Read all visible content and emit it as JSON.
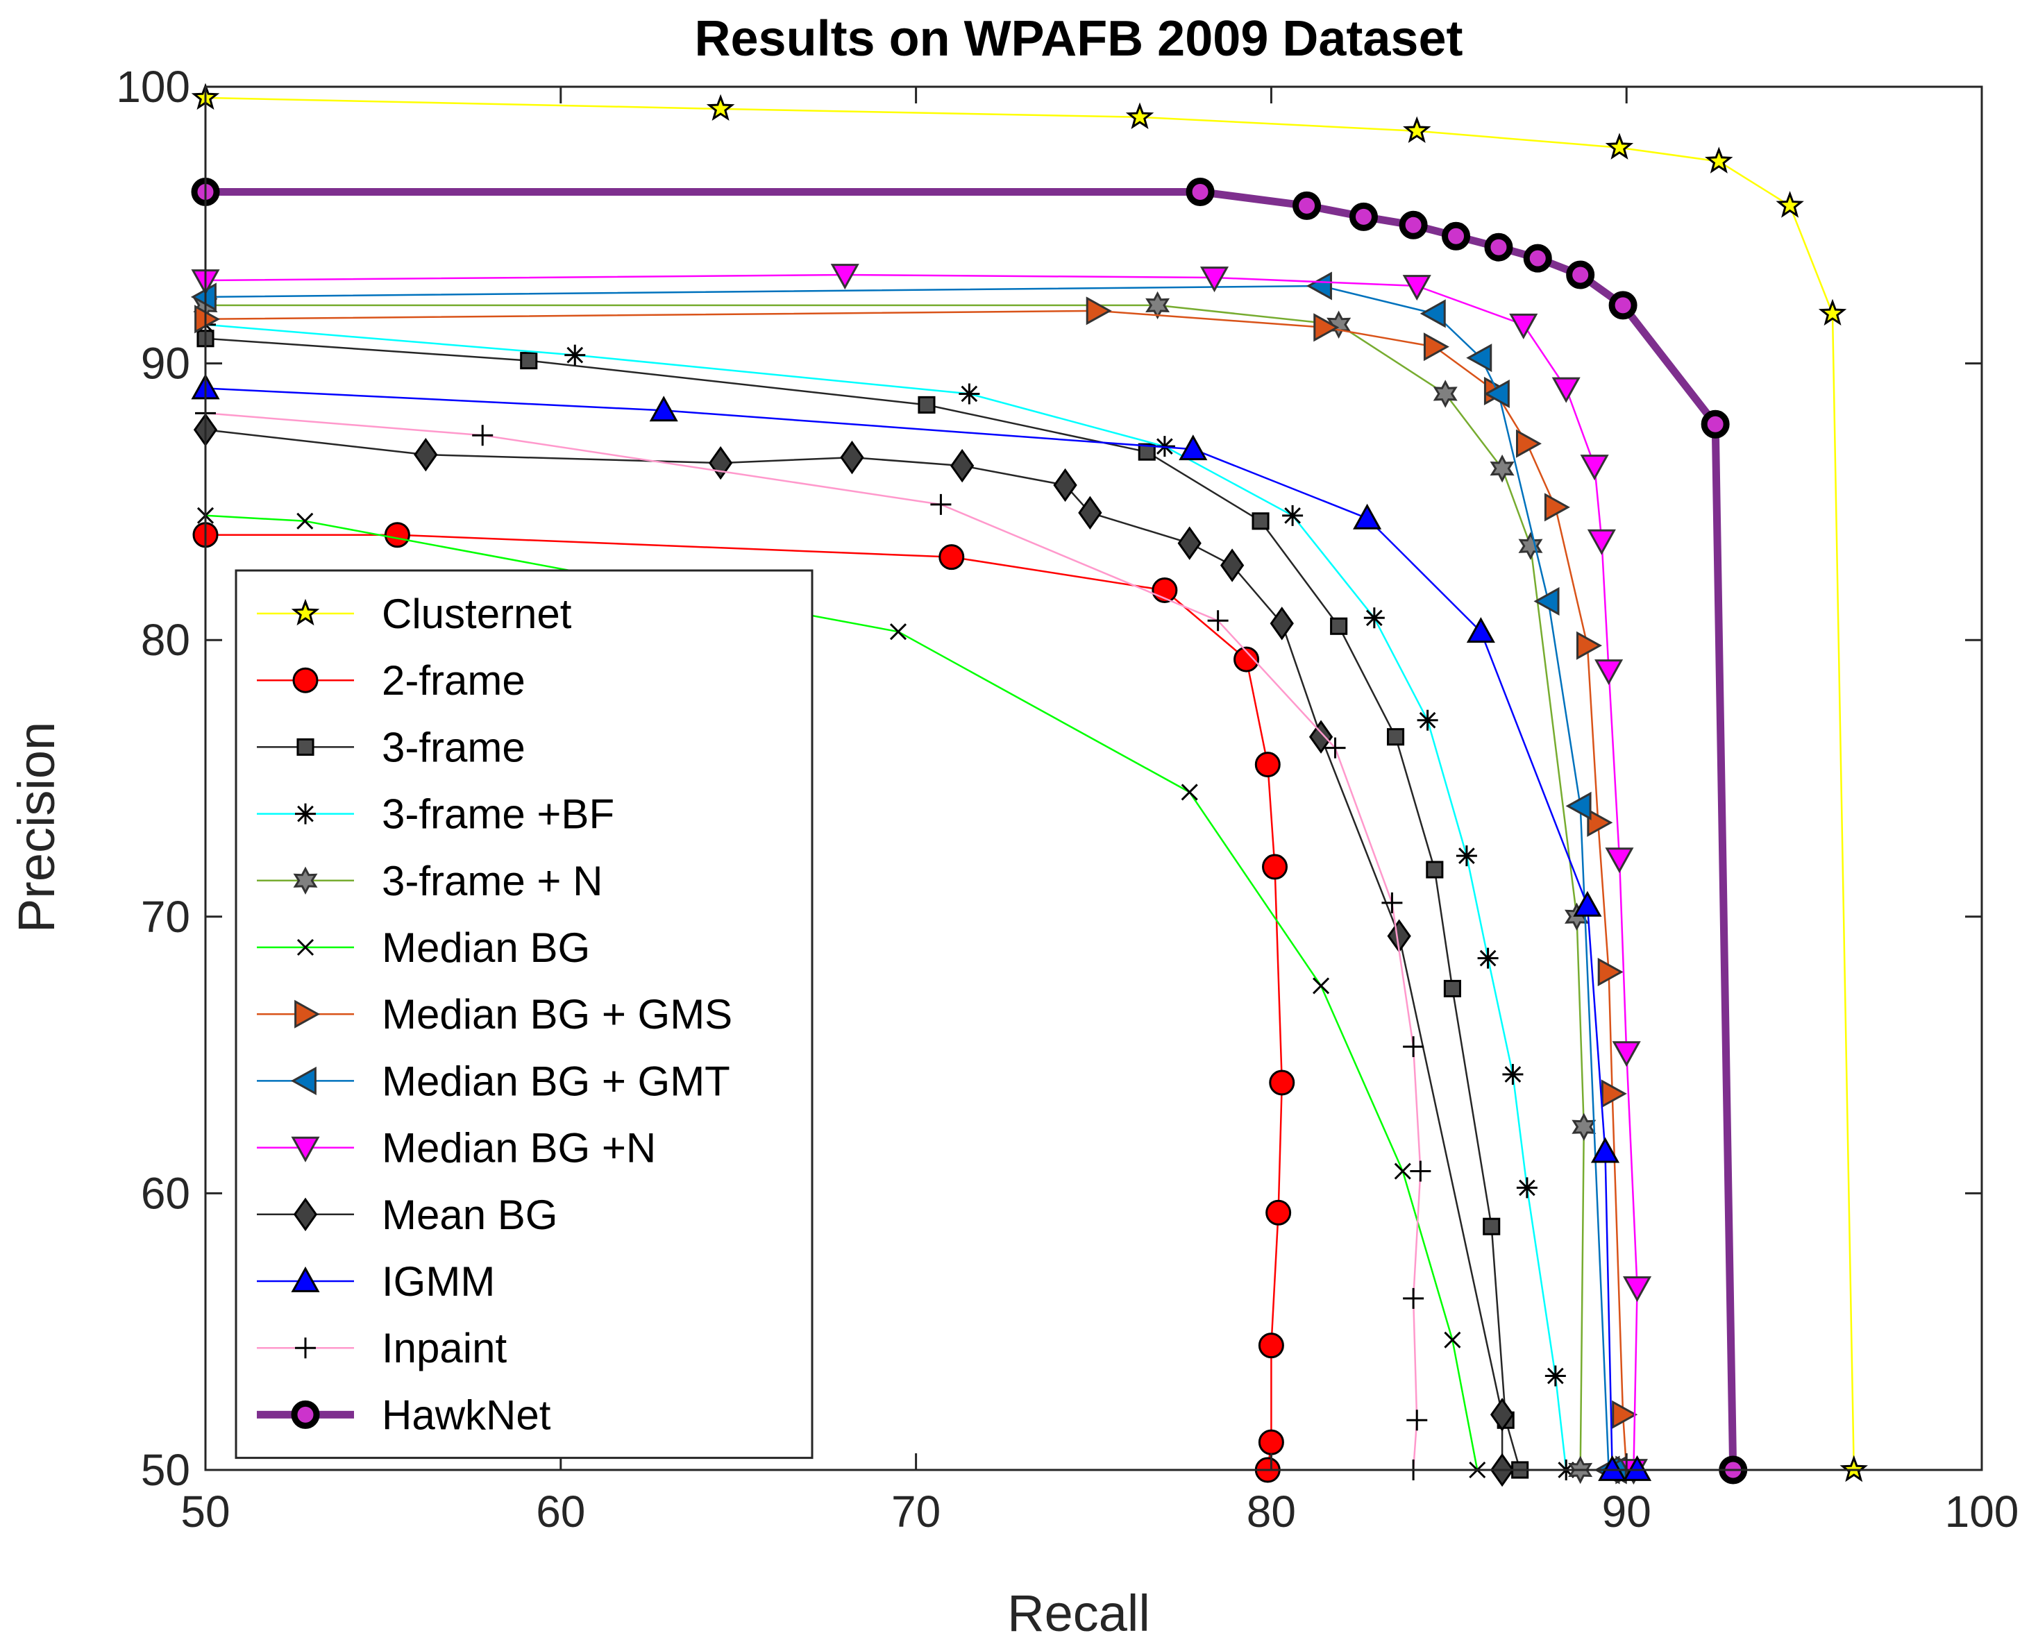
{
  "chart_data": {
    "type": "line",
    "title": "Results on WPAFB 2009 Dataset",
    "xlabel": "Recall",
    "ylabel": "Precision",
    "xlim": [
      50,
      100
    ],
    "ylim": [
      50,
      100
    ],
    "xticks": [
      50,
      60,
      70,
      80,
      90,
      100
    ],
    "yticks": [
      50,
      60,
      70,
      80,
      90,
      100
    ],
    "grid": false,
    "legend_position": "bottom-left",
    "series": [
      {
        "name": "Clusternet",
        "color": "#ffff00",
        "marker": "star",
        "x": [
          50,
          64.5,
          76.3,
          84.1,
          89.8,
          92.6,
          94.6,
          95.8,
          96.4
        ],
        "y": [
          99.6,
          99.2,
          98.9,
          98.4,
          97.8,
          97.3,
          95.7,
          91.8,
          50
        ]
      },
      {
        "name": "2-frame",
        "color": "#ff0000",
        "marker": "circle",
        "x": [
          50,
          55.4,
          71.0,
          77.0,
          79.3,
          79.9,
          80.1,
          80.3,
          80.2,
          80.0,
          80.0,
          79.9
        ],
        "y": [
          83.8,
          83.8,
          83.0,
          81.8,
          79.3,
          75.5,
          71.8,
          64.0,
          59.3,
          54.5,
          51.0,
          50.0
        ]
      },
      {
        "name": "3-frame",
        "color": "#262626",
        "marker": "square",
        "x": [
          50,
          59.1,
          70.3,
          76.5,
          79.7,
          81.9,
          83.5,
          84.6,
          85.1,
          86.2,
          86.6,
          87.0
        ],
        "y": [
          90.9,
          90.1,
          88.5,
          86.8,
          84.3,
          80.5,
          76.5,
          71.7,
          67.4,
          58.8,
          51.8,
          50.0
        ]
      },
      {
        "name": "3-frame +BF",
        "color": "#00ffff",
        "marker": "asterisk",
        "x": [
          50,
          60.4,
          71.5,
          77.0,
          80.6,
          82.9,
          84.4,
          85.5,
          86.1,
          86.8,
          87.2,
          88.0,
          88.3
        ],
        "y": [
          91.4,
          90.3,
          88.9,
          87.0,
          84.5,
          80.8,
          77.1,
          72.2,
          68.5,
          64.3,
          60.2,
          53.4,
          50.0
        ]
      },
      {
        "name": "3-frame + N",
        "color": "#77ac30",
        "marker": "hexagram",
        "x": [
          50,
          76.8,
          81.9,
          84.9,
          86.5,
          87.3,
          88.6,
          88.8,
          88.7
        ],
        "y": [
          92.1,
          92.1,
          91.4,
          88.9,
          86.2,
          83.4,
          70.0,
          62.4,
          50.0
        ]
      },
      {
        "name": "Median BG",
        "color": "#00ff00",
        "marker": "x",
        "x": [
          50,
          52.8,
          69.5,
          77.7,
          81.4,
          83.7,
          85.1,
          85.8
        ],
        "y": [
          84.5,
          84.3,
          80.3,
          74.5,
          67.5,
          60.8,
          54.7,
          50.0
        ]
      },
      {
        "name": "Median BG + GMS",
        "color": "#d95319",
        "marker": "triangle-right",
        "x": [
          50,
          75.1,
          81.5,
          84.6,
          86.3,
          87.2,
          88.0,
          88.9,
          89.2,
          89.5,
          89.6,
          89.9,
          90.0
        ],
        "y": [
          91.6,
          91.9,
          91.3,
          90.6,
          89.0,
          87.1,
          84.8,
          79.8,
          73.4,
          68.0,
          63.6,
          52.0,
          50.0
        ]
      },
      {
        "name": "Median BG + GMT",
        "color": "#0072bd",
        "marker": "triangle-left",
        "x": [
          50,
          81.4,
          84.6,
          85.9,
          86.4,
          87.8,
          88.7,
          89.5,
          89.7
        ],
        "y": [
          92.4,
          92.8,
          91.8,
          90.2,
          88.9,
          81.4,
          74.0,
          50.0,
          50.0
        ]
      },
      {
        "name": "Median BG +N",
        "color": "#ff00ff",
        "marker": "triangle-down",
        "x": [
          50,
          68.0,
          78.4,
          84.1,
          87.1,
          88.3,
          89.1,
          89.3,
          89.5,
          89.8,
          90.0,
          90.3,
          90.2
        ],
        "y": [
          93.0,
          93.2,
          93.1,
          92.8,
          91.4,
          89.1,
          86.3,
          83.6,
          78.9,
          72.1,
          65.1,
          56.6,
          50.0
        ]
      },
      {
        "name": "Mean BG",
        "color": "#262626",
        "marker": "diamond",
        "x": [
          50,
          56.2,
          64.5,
          68.2,
          71.3,
          74.2,
          74.9,
          77.7,
          78.9,
          80.3,
          81.4,
          83.6,
          86.5,
          86.5
        ],
        "y": [
          87.6,
          86.7,
          86.4,
          86.6,
          86.3,
          85.6,
          84.6,
          83.5,
          82.7,
          80.6,
          76.5,
          69.3,
          52.0,
          50.0
        ]
      },
      {
        "name": "IGMM",
        "color": "#0000ff",
        "marker": "triangle-up",
        "x": [
          50,
          62.9,
          77.8,
          82.7,
          85.9,
          88.9,
          89.4,
          89.6,
          90.3
        ],
        "y": [
          89.1,
          88.3,
          86.9,
          84.4,
          80.3,
          70.4,
          61.5,
          50.0,
          50.0
        ]
      },
      {
        "name": "Inpaint",
        "color": "#ff99cc",
        "marker": "plus",
        "x": [
          50,
          57.8,
          70.7,
          78.5,
          81.8,
          83.4,
          84.0,
          84.2,
          84.0,
          84.1,
          84.0
        ],
        "y": [
          88.2,
          87.4,
          84.9,
          80.7,
          76.1,
          70.5,
          65.3,
          60.8,
          56.2,
          51.8,
          50.0
        ]
      },
      {
        "name": "HawkNet",
        "color": "#7e2f8e",
        "marker": "circle-hawk",
        "x": [
          50,
          78.0,
          81.0,
          82.6,
          84.0,
          85.2,
          86.4,
          87.5,
          88.7,
          89.9,
          92.5,
          93.0
        ],
        "y": [
          96.2,
          96.2,
          95.7,
          95.3,
          95.0,
          94.6,
          94.2,
          93.8,
          93.2,
          92.1,
          87.8,
          50.0
        ]
      }
    ]
  }
}
